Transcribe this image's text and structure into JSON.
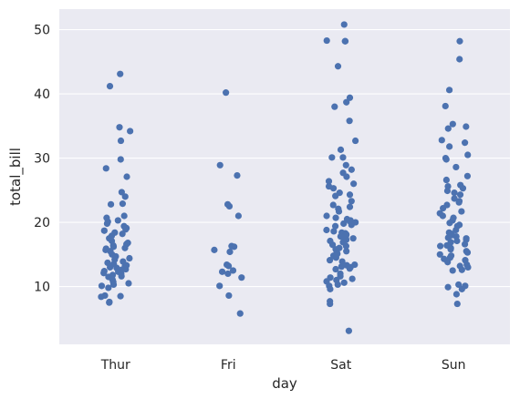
{
  "chart_data": {
    "type": "scatter",
    "style": "strip",
    "title": "",
    "xlabel": "day",
    "ylabel": "total_bill",
    "ylim": [
      1,
      53.2
    ],
    "yticks": [
      10,
      20,
      30,
      40,
      50
    ],
    "grid": true,
    "legend": "none",
    "categories": [
      "Thur",
      "Fri",
      "Sat",
      "Sun"
    ],
    "colors": {
      "point": "#4c72b0",
      "plot_bg": "#eaeaf2",
      "grid": "#ffffff",
      "text": "#262626"
    },
    "series": [
      {
        "category": "Thur",
        "values": [
          43.1,
          41.2,
          34.8,
          34.2,
          32.7,
          29.8,
          28.4,
          27.1,
          24.7,
          24.0,
          22.9,
          22.8,
          21.0,
          20.7,
          20.3,
          20.1,
          19.8,
          19.4,
          19.1,
          18.9,
          18.7,
          18.4,
          18.2,
          17.9,
          17.5,
          17.1,
          16.8,
          16.6,
          16.4,
          16.2,
          16.0,
          15.9,
          15.7,
          15.5,
          15.0,
          14.7,
          14.4,
          14.2,
          13.9,
          13.7,
          13.5,
          13.3,
          13.2,
          13.0,
          12.9,
          12.7,
          12.6,
          12.4,
          12.3,
          12.1,
          12.0,
          11.8,
          11.6,
          11.5,
          11.2,
          11.0,
          10.7,
          10.5,
          10.3,
          10.1,
          9.8,
          8.6,
          8.5,
          8.4,
          7.6,
          7.5
        ]
      },
      {
        "category": "Fri",
        "values": [
          40.2,
          28.9,
          27.3,
          22.8,
          22.5,
          21.0,
          16.3,
          16.2,
          15.7,
          15.4,
          13.4,
          13.2,
          12.5,
          12.3,
          12.0,
          11.4,
          10.1,
          8.6,
          5.8
        ]
      },
      {
        "category": "Sat",
        "values": [
          50.8,
          48.3,
          48.2,
          48.2,
          44.3,
          39.4,
          38.7,
          38.0,
          35.8,
          32.7,
          31.3,
          30.1,
          30.1,
          28.9,
          28.2,
          27.7,
          27.1,
          26.4,
          26.0,
          25.6,
          25.3,
          24.6,
          24.3,
          24.1,
          23.3,
          22.7,
          22.4,
          22.1,
          21.7,
          21.0,
          20.7,
          20.5,
          20.3,
          20.2,
          20.0,
          19.8,
          19.6,
          19.4,
          18.8,
          18.6,
          18.4,
          18.3,
          18.1,
          17.9,
          17.8,
          17.6,
          17.5,
          17.3,
          17.1,
          16.9,
          16.5,
          16.3,
          16.0,
          15.8,
          15.5,
          15.4,
          15.1,
          14.8,
          14.5,
          14.1,
          13.9,
          13.4,
          13.3,
          13.1,
          13.0,
          12.8,
          12.7,
          12.0,
          11.6,
          11.4,
          11.2,
          11.0,
          10.8,
          10.6,
          10.3,
          10.1,
          9.6,
          7.7,
          7.3,
          3.1
        ]
      },
      {
        "category": "Sun",
        "values": [
          48.2,
          45.4,
          40.6,
          38.1,
          35.3,
          34.9,
          34.6,
          32.8,
          32.4,
          31.8,
          30.5,
          30.0,
          29.8,
          28.6,
          27.2,
          26.6,
          25.8,
          25.6,
          25.3,
          24.9,
          24.6,
          24.3,
          23.7,
          23.3,
          23.1,
          22.7,
          22.2,
          21.7,
          21.4,
          21.0,
          20.7,
          20.3,
          19.9,
          19.6,
          19.4,
          18.8,
          18.4,
          18.2,
          18.0,
          17.8,
          17.6,
          17.5,
          17.3,
          17.1,
          16.9,
          16.6,
          16.4,
          16.3,
          16.0,
          15.8,
          15.5,
          15.3,
          15.0,
          14.8,
          14.5,
          14.3,
          14.1,
          13.8,
          13.4,
          13.2,
          13.0,
          12.6,
          12.5,
          10.3,
          10.1,
          9.9,
          9.6,
          8.8,
          7.3
        ]
      }
    ]
  }
}
